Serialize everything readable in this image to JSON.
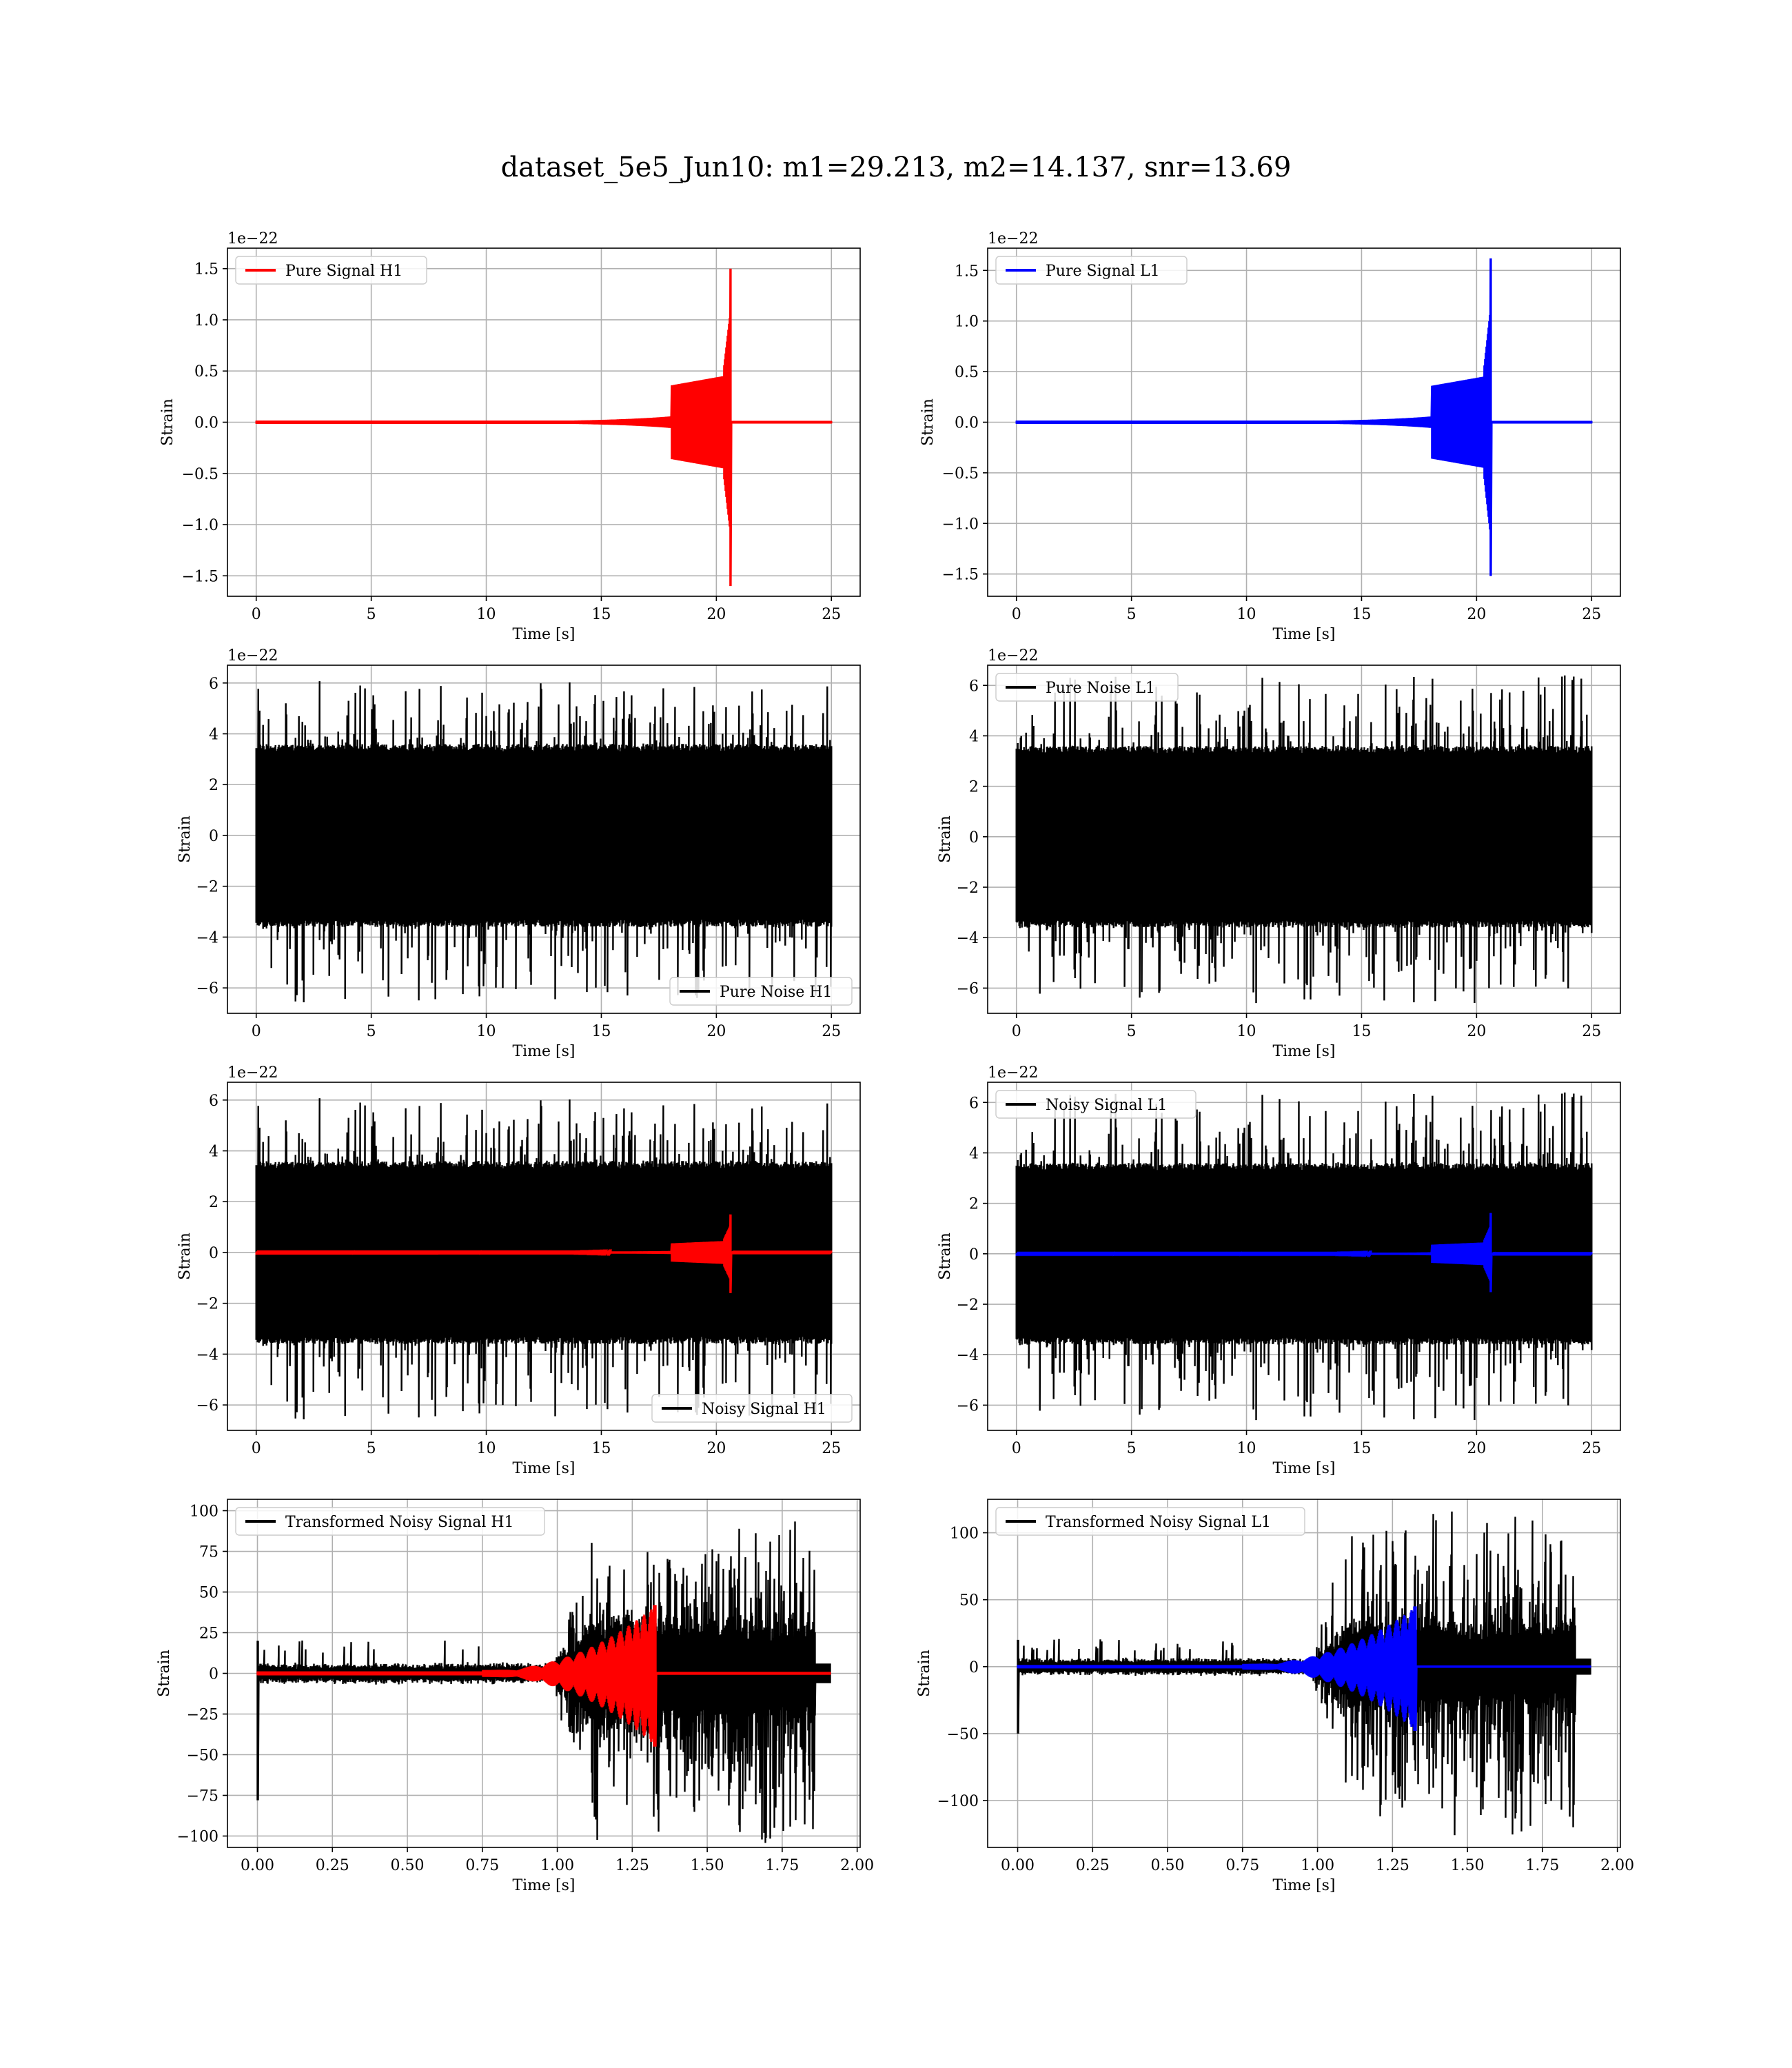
{
  "figure": {
    "suptitle": "dataset_5e5_Jun10: m1=29.213, m2=14.137, snr=13.69"
  },
  "chart_data": [
    {
      "type": "line",
      "ylabel": "Strain",
      "xlabel": "Time [s]",
      "offset_text": "1e−22",
      "xlim": [
        -1.25,
        26.25
      ],
      "ylim": [
        -1.7,
        1.7
      ],
      "xticks": [
        0,
        5,
        10,
        15,
        20,
        25
      ],
      "xtick_labels": [
        "0",
        "5",
        "10",
        "15",
        "20",
        "25"
      ],
      "yticks": [
        -1.5,
        -1.0,
        -0.5,
        0.0,
        0.5,
        1.0,
        1.5
      ],
      "ytick_labels": [
        "−1.5",
        "−1.0",
        "−0.5",
        "0.0",
        "0.5",
        "1.0",
        "1.5"
      ],
      "grid": true,
      "legend_loc": "upper-left",
      "series": [
        {
          "name": "Pure Signal H1",
          "color": "#ff0000",
          "kind": "chirp",
          "x_range": [
            0,
            25
          ],
          "merger_time": 20.65,
          "peak": 1.5,
          "trough": -1.6,
          "seed": 11
        }
      ]
    },
    {
      "type": "line",
      "ylabel": "Strain",
      "xlabel": "Time [s]",
      "offset_text": "1e−22",
      "xlim": [
        -1.25,
        26.25
      ],
      "ylim": [
        -1.72,
        1.72
      ],
      "xticks": [
        0,
        5,
        10,
        15,
        20,
        25
      ],
      "xtick_labels": [
        "0",
        "5",
        "10",
        "15",
        "20",
        "25"
      ],
      "yticks": [
        -1.5,
        -1.0,
        -0.5,
        0.0,
        0.5,
        1.0,
        1.5
      ],
      "ytick_labels": [
        "−1.5",
        "−1.0",
        "−0.5",
        "0.0",
        "0.5",
        "1.0",
        "1.5"
      ],
      "grid": true,
      "legend_loc": "upper-left",
      "series": [
        {
          "name": "Pure Signal L1",
          "color": "#0000ff",
          "kind": "chirp",
          "x_range": [
            0,
            25
          ],
          "merger_time": 20.65,
          "peak": 1.62,
          "trough": -1.52,
          "seed": 12
        }
      ]
    },
    {
      "type": "line",
      "ylabel": "Strain",
      "xlabel": "Time [s]",
      "offset_text": "1e−22",
      "xlim": [
        -1.25,
        26.25
      ],
      "ylim": [
        -7.0,
        6.7
      ],
      "xticks": [
        0,
        5,
        10,
        15,
        20,
        25
      ],
      "xtick_labels": [
        "0",
        "5",
        "10",
        "15",
        "20",
        "25"
      ],
      "yticks": [
        -6,
        -4,
        -2,
        0,
        2,
        4,
        6
      ],
      "ytick_labels": [
        "−6",
        "−4",
        "−2",
        "0",
        "2",
        "4",
        "6"
      ],
      "grid": true,
      "legend_loc": "lower-right",
      "series": [
        {
          "name": "Pure Noise H1",
          "color": "#000000",
          "kind": "noise",
          "x_range": [
            0,
            25
          ],
          "band": 3.6,
          "max": 6.1,
          "min": -6.6,
          "seed": 21
        }
      ]
    },
    {
      "type": "line",
      "ylabel": "Strain",
      "xlabel": "Time [s]",
      "offset_text": "1e−22",
      "xlim": [
        -1.25,
        26.25
      ],
      "ylim": [
        -7.0,
        6.8
      ],
      "xticks": [
        0,
        5,
        10,
        15,
        20,
        25
      ],
      "xtick_labels": [
        "0",
        "5",
        "10",
        "15",
        "20",
        "25"
      ],
      "yticks": [
        -6,
        -4,
        -2,
        0,
        2,
        4,
        6
      ],
      "ytick_labels": [
        "−6",
        "−4",
        "−2",
        "0",
        "2",
        "4",
        "6"
      ],
      "grid": true,
      "legend_loc": "upper-left",
      "series": [
        {
          "name": "Pure Noise L1",
          "color": "#000000",
          "kind": "noise",
          "x_range": [
            0,
            25
          ],
          "band": 3.6,
          "max": 6.4,
          "min": -6.6,
          "seed": 22
        }
      ]
    },
    {
      "type": "line",
      "ylabel": "Strain",
      "xlabel": "Time [s]",
      "offset_text": "1e−22",
      "xlim": [
        -1.25,
        26.25
      ],
      "ylim": [
        -7.0,
        6.7
      ],
      "xticks": [
        0,
        5,
        10,
        15,
        20,
        25
      ],
      "xtick_labels": [
        "0",
        "5",
        "10",
        "15",
        "20",
        "25"
      ],
      "yticks": [
        -6,
        -4,
        -2,
        0,
        2,
        4,
        6
      ],
      "ytick_labels": [
        "−6",
        "−4",
        "−2",
        "0",
        "2",
        "4",
        "6"
      ],
      "grid": true,
      "legend_loc": "lower-right",
      "series": [
        {
          "name": "Noisy Signal H1",
          "color": "#000000",
          "kind": "noise",
          "x_range": [
            0,
            25
          ],
          "band": 3.6,
          "max": 6.1,
          "min": -6.6,
          "seed": 21
        },
        {
          "name": "",
          "color": "#ff0000",
          "kind": "chirp",
          "x_range": [
            0,
            25
          ],
          "merger_time": 20.65,
          "peak": 1.5,
          "trough": -1.6,
          "seed": 11
        }
      ]
    },
    {
      "type": "line",
      "ylabel": "Strain",
      "xlabel": "Time [s]",
      "offset_text": "1e−22",
      "xlim": [
        -1.25,
        26.25
      ],
      "ylim": [
        -7.0,
        6.8
      ],
      "xticks": [
        0,
        5,
        10,
        15,
        20,
        25
      ],
      "xtick_labels": [
        "0",
        "5",
        "10",
        "15",
        "20",
        "25"
      ],
      "yticks": [
        -6,
        -4,
        -2,
        0,
        2,
        4,
        6
      ],
      "ytick_labels": [
        "−6",
        "−4",
        "−2",
        "0",
        "2",
        "4",
        "6"
      ],
      "grid": true,
      "legend_loc": "upper-left",
      "series": [
        {
          "name": "Noisy Signal L1",
          "color": "#000000",
          "kind": "noise",
          "x_range": [
            0,
            25
          ],
          "band": 3.6,
          "max": 6.4,
          "min": -6.6,
          "seed": 22
        },
        {
          "name": "",
          "color": "#0000ff",
          "kind": "chirp",
          "x_range": [
            0,
            25
          ],
          "merger_time": 20.65,
          "peak": 1.62,
          "trough": -1.52,
          "seed": 12
        }
      ]
    },
    {
      "type": "line",
      "ylabel": "Strain",
      "xlabel": "Time [s]",
      "offset_text": "",
      "xlim": [
        -0.1,
        2.01
      ],
      "ylim": [
        -107,
        107
      ],
      "xticks": [
        0.0,
        0.25,
        0.5,
        0.75,
        1.0,
        1.25,
        1.5,
        1.75,
        2.0
      ],
      "xtick_labels": [
        "0.00",
        "0.25",
        "0.50",
        "0.75",
        "1.00",
        "1.25",
        "1.50",
        "1.75",
        "2.00"
      ],
      "yticks": [
        -100,
        -75,
        -50,
        -25,
        0,
        25,
        50,
        75,
        100
      ],
      "ytick_labels": [
        "−100",
        "−75",
        "−50",
        "−25",
        "0",
        "25",
        "50",
        "75",
        "100"
      ],
      "grid": true,
      "legend_loc": "upper-left",
      "series": [
        {
          "name": "Transformed Noisy Signal H1",
          "color": "#000000",
          "kind": "whitened",
          "x_range": [
            0,
            1.91
          ],
          "burst_start": 0.98,
          "burst_full": 1.12,
          "burst_end": 1.86,
          "max": 97,
          "min": -100,
          "start_spike": -78,
          "seed": 31
        },
        {
          "name": "",
          "color": "#ff0000",
          "kind": "wchirp",
          "x_range": [
            0,
            1.91
          ],
          "merger_time": 1.33,
          "peak": 42,
          "trough": -45,
          "seed": 41
        }
      ]
    },
    {
      "type": "line",
      "ylabel": "Strain",
      "xlabel": "Time [s]",
      "offset_text": "",
      "xlim": [
        -0.1,
        2.01
      ],
      "ylim": [
        -135,
        125
      ],
      "xticks": [
        0.0,
        0.25,
        0.5,
        0.75,
        1.0,
        1.25,
        1.5,
        1.75,
        2.0
      ],
      "xtick_labels": [
        "0.00",
        "0.25",
        "0.50",
        "0.75",
        "1.00",
        "1.25",
        "1.50",
        "1.75",
        "2.00"
      ],
      "yticks": [
        -100,
        -50,
        0,
        50,
        100
      ],
      "ytick_labels": [
        "−100",
        "−50",
        "0",
        "50",
        "100"
      ],
      "grid": true,
      "legend_loc": "upper-left",
      "series": [
        {
          "name": "Transformed Noisy Signal L1",
          "color": "#000000",
          "kind": "whitened",
          "x_range": [
            0,
            1.91
          ],
          "burst_start": 0.98,
          "burst_full": 1.12,
          "burst_end": 1.86,
          "max": 117,
          "min": -123,
          "start_spike": -50,
          "seed": 32
        },
        {
          "name": "",
          "color": "#0000ff",
          "kind": "wchirp",
          "x_range": [
            0,
            1.91
          ],
          "merger_time": 1.33,
          "peak": 45,
          "trough": -48,
          "seed": 42
        }
      ]
    }
  ]
}
